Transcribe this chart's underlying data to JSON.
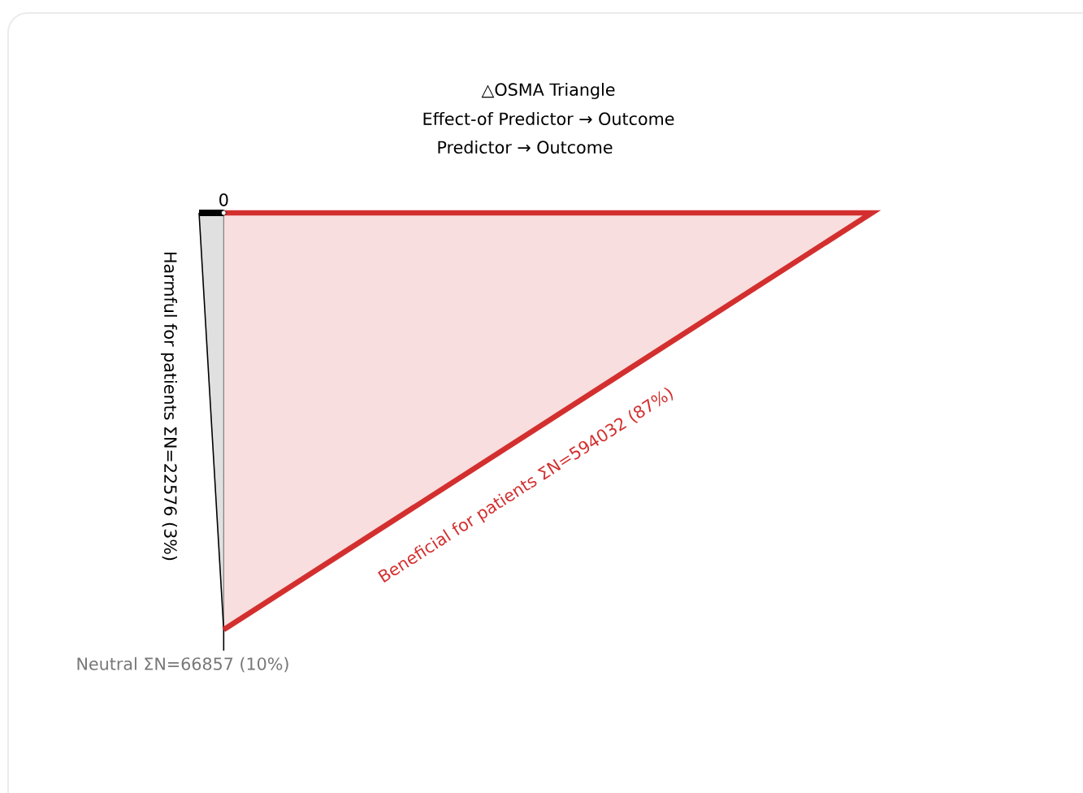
{
  "chart_data": {
    "type": "other",
    "title": "△OSMA Triangle",
    "subtitle": "Effect-of Predictor → Outcome",
    "annotations": [
      "Predictor  →  Outcome",
      "0"
    ],
    "categories": [
      "Harmful for patients",
      "Neutral",
      "Beneficial for patients"
    ],
    "values": [
      22576,
      66857,
      594032
    ],
    "value_labels": [
      "ΣN=22576 (3%)",
      "ΣN=66857 (10%)",
      "ΣN=594032 (87%)"
    ],
    "colors": [
      "#000000",
      "#777777",
      "#d32f2f"
    ]
  }
}
